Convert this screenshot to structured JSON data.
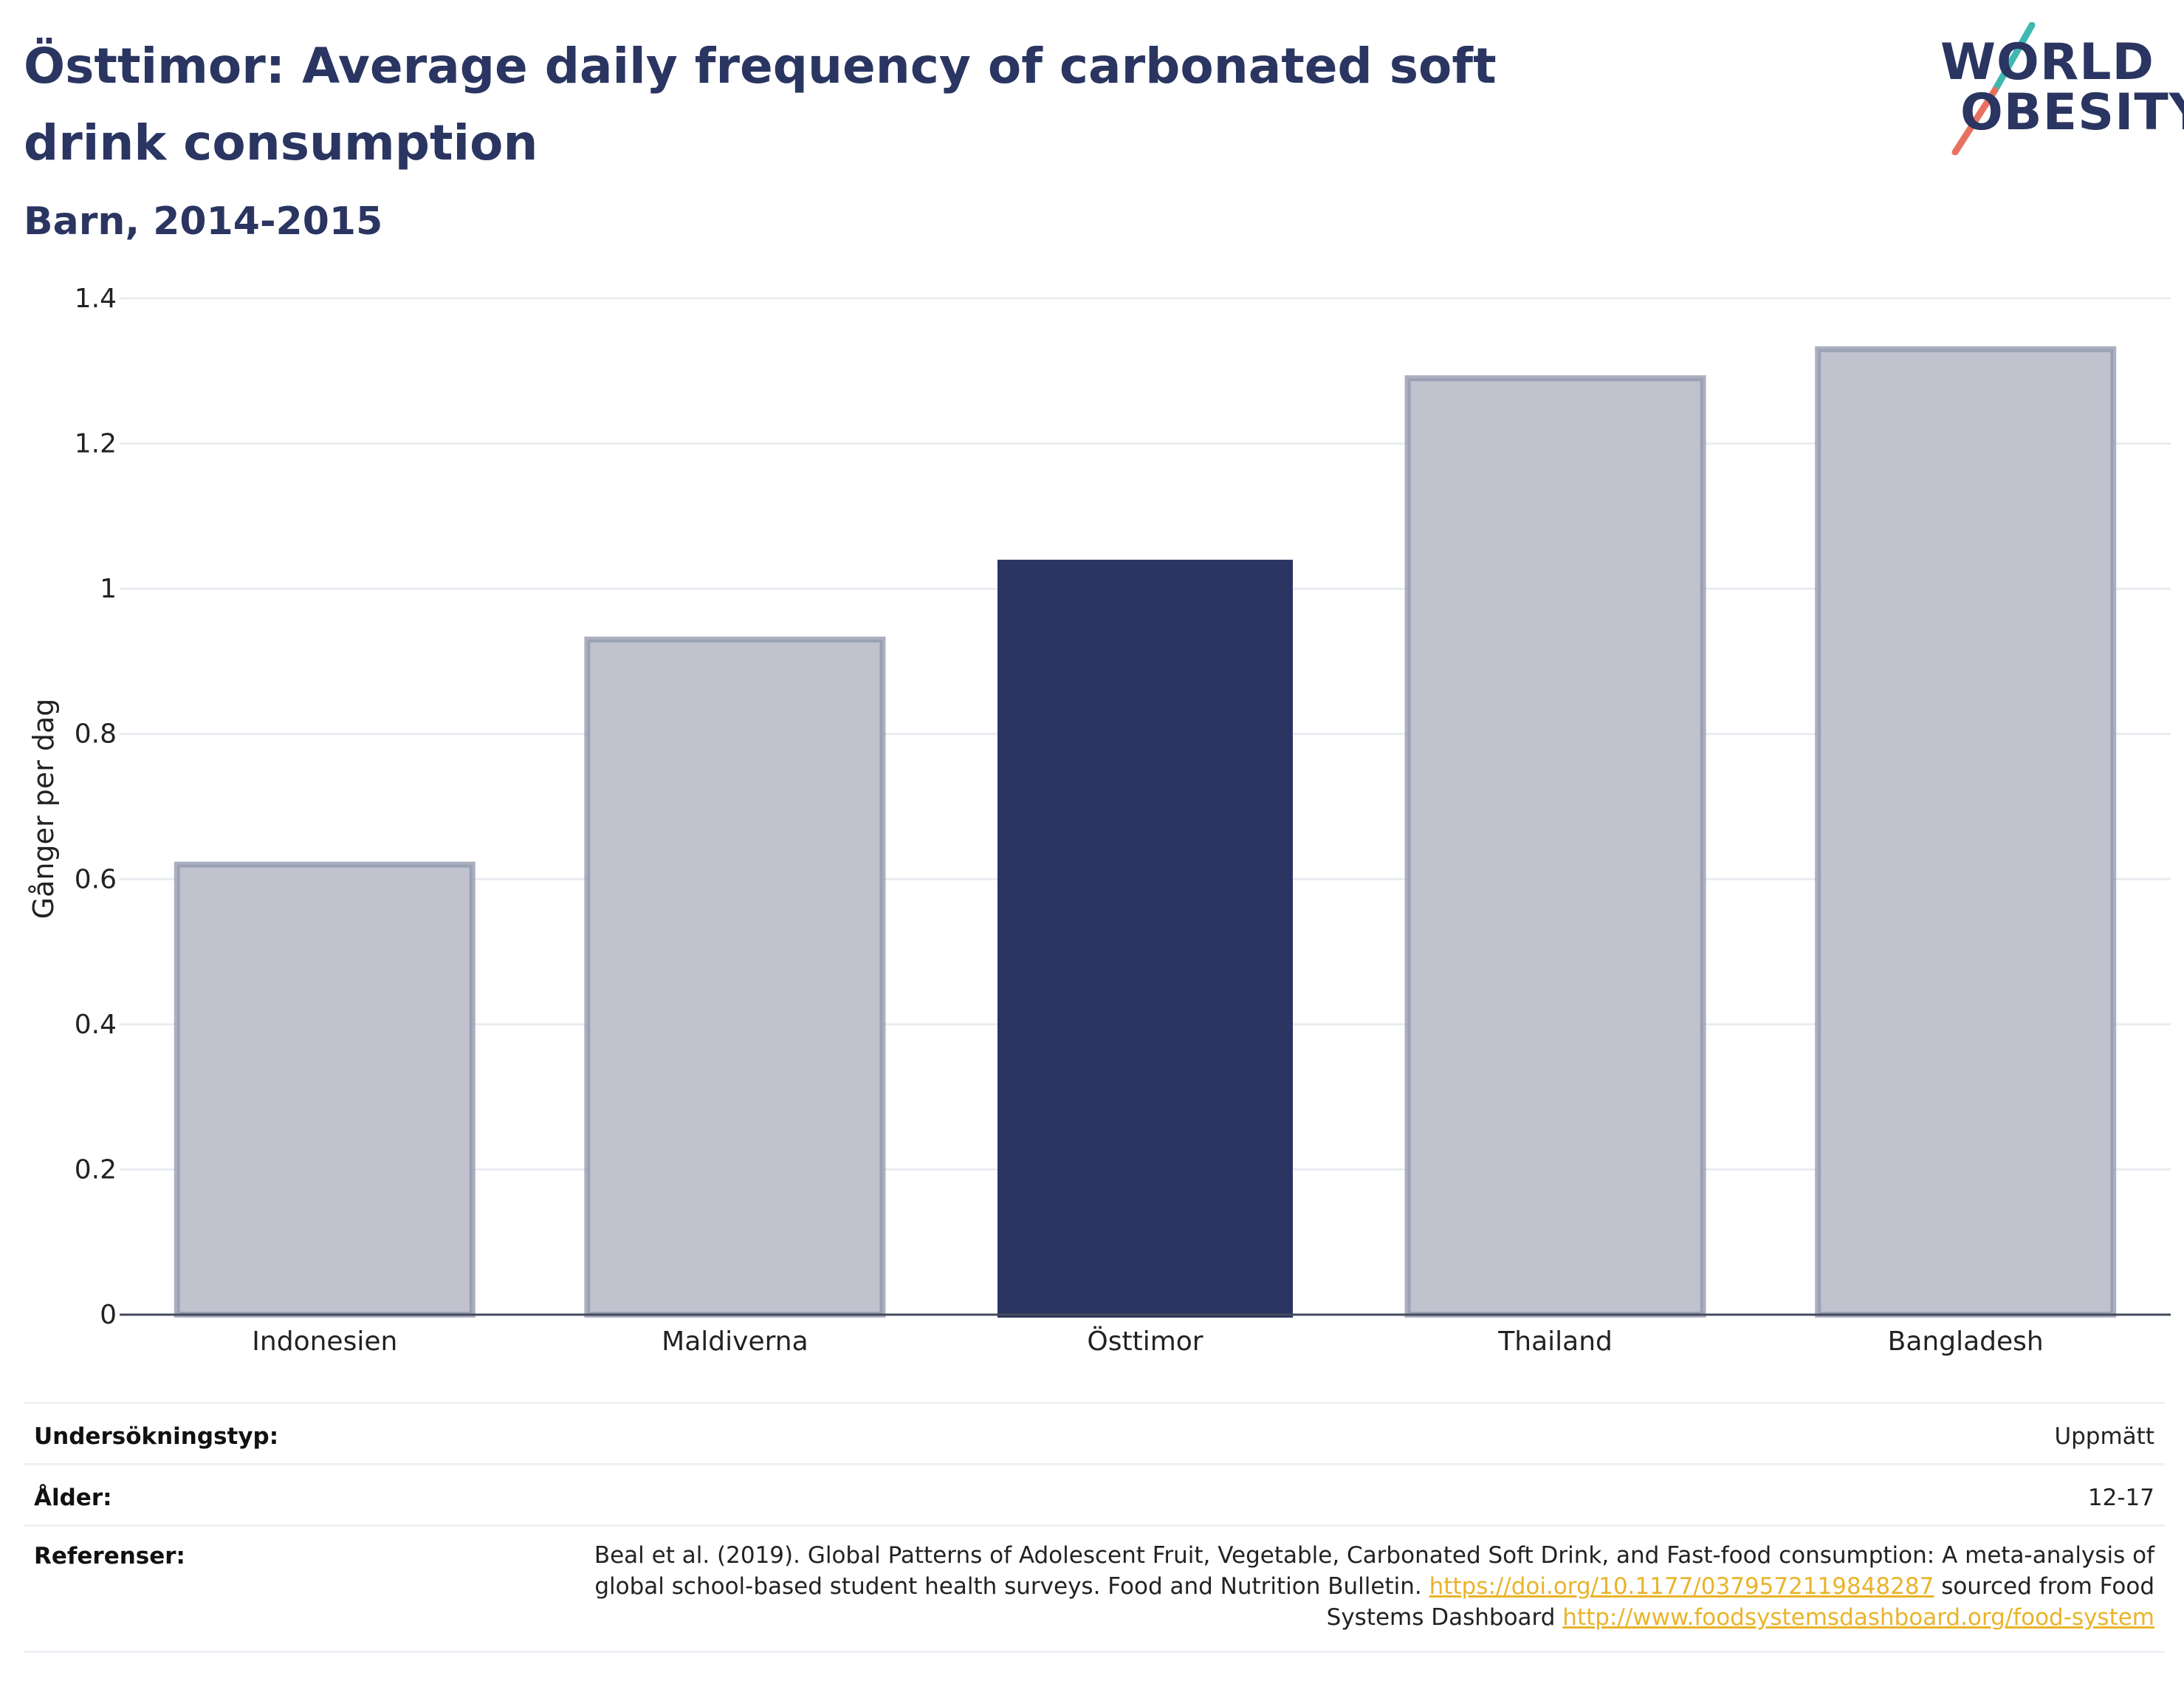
{
  "header": {
    "title": "Östtimor: Average daily frequency of carbonated soft drink consumption",
    "subtitle": "Barn, 2014-2015"
  },
  "logo": {
    "line1": "WORLD",
    "line2": "OBESITY",
    "slash_colors": [
      "#3fb8b0",
      "#e7715f"
    ]
  },
  "colors": {
    "highlight": "#2a3561",
    "other_fill": "#c0c3ce",
    "other_stroke": "#8f95ab"
  },
  "chart_data": {
    "type": "bar",
    "title": "Östtimor: Average daily frequency of carbonated soft drink consumption",
    "subtitle": "Barn, 2014-2015",
    "categories": [
      "Indonesien",
      "Maldiverna",
      "Östtimor",
      "Thailand",
      "Bangladesh"
    ],
    "values": [
      0.62,
      0.93,
      1.04,
      1.29,
      1.33
    ],
    "highlight": "Östtimor",
    "ylabel": "Gånger per dag",
    "xlabel": "",
    "ylim": [
      0,
      1.4
    ],
    "yticks": [
      "0",
      "0.2",
      "0.4",
      "0.6",
      "0.8",
      "1",
      "1.2",
      "1.4"
    ],
    "ytick_values": [
      0,
      0.2,
      0.4,
      0.6,
      0.8,
      1,
      1.2,
      1.4
    ],
    "grid": true
  },
  "meta": {
    "survey_label": "Undersökningstyp:",
    "survey_value": "Uppmätt",
    "age_label": "Ålder:",
    "age_value": "12-17",
    "ref_label": "Referenser:",
    "ref_text_1": "Beal et al. (2019). Global Patterns of Adolescent Fruit, Vegetable, Carbonated Soft Drink, and Fast-food consumption: A meta-analysis of global school-based student health surveys. Food and Nutrition Bulletin.",
    "ref_link_1": "https://doi.org/10.1177/0379572119848287",
    "ref_text_2": "sourced from Food Systems Dashboard",
    "ref_link_2": "http://www.foodsystemsdashboard.org/food-system"
  }
}
